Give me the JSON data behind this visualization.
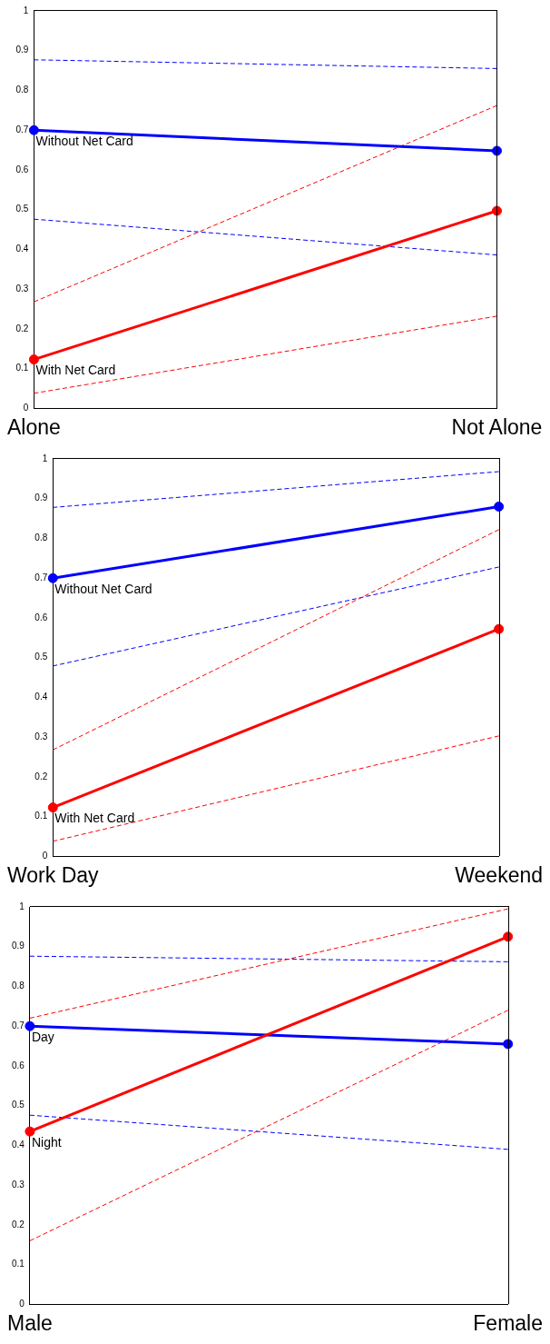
{
  "chart_data": [
    {
      "type": "line",
      "categories": [
        "Alone",
        "Not Alone"
      ],
      "ylim": [
        0,
        1
      ],
      "yticks": [
        0,
        0.1,
        0.2,
        0.3,
        0.4,
        0.5,
        0.6,
        0.7,
        0.8,
        0.9,
        1
      ],
      "marker": "circle",
      "legend": false,
      "series": [
        {
          "color": "#0000ff",
          "values": [
            0.877,
            0.855
          ],
          "line_style": "dashed",
          "marker": "none"
        },
        {
          "color": "#0000ff",
          "values": [
            0.476,
            0.386
          ],
          "line_style": "dashed",
          "marker": "none"
        },
        {
          "color": "#ff0000",
          "values": [
            0.268,
            0.762
          ],
          "line_style": "dashed",
          "marker": "none"
        },
        {
          "color": "#ff0000",
          "values": [
            0.038,
            0.232
          ],
          "line_style": "dashed",
          "marker": "none"
        },
        {
          "name": "Without Net Card",
          "color": "#0000ff",
          "values": [
            0.7,
            0.648
          ],
          "line_style": "solid"
        },
        {
          "name": "With Net Card",
          "color": "#ff0000",
          "values": [
            0.123,
            0.497
          ],
          "line_style": "solid"
        }
      ]
    },
    {
      "type": "line",
      "categories": [
        "Work Day",
        "Weekend"
      ],
      "ylim": [
        0,
        1
      ],
      "yticks": [
        0,
        0.1,
        0.2,
        0.3,
        0.4,
        0.5,
        0.6,
        0.7,
        0.8,
        0.9,
        1
      ],
      "marker": "circle",
      "legend": false,
      "series": [
        {
          "color": "#0000ff",
          "values": [
            0.878,
            0.968
          ],
          "line_style": "dashed",
          "marker": "none"
        },
        {
          "color": "#0000ff",
          "values": [
            0.479,
            0.728
          ],
          "line_style": "dashed",
          "marker": "none"
        },
        {
          "color": "#ff0000",
          "values": [
            0.268,
            0.822
          ],
          "line_style": "dashed",
          "marker": "none"
        },
        {
          "color": "#ff0000",
          "values": [
            0.038,
            0.303
          ],
          "line_style": "dashed",
          "marker": "none"
        },
        {
          "name": "Without Net Card",
          "color": "#0000ff",
          "values": [
            0.7,
            0.88
          ],
          "line_style": "solid"
        },
        {
          "name": "With Net Card",
          "color": "#ff0000",
          "values": [
            0.123,
            0.572
          ],
          "line_style": "solid"
        }
      ]
    },
    {
      "type": "line",
      "categories": [
        "Male",
        "Female"
      ],
      "ylim": [
        0,
        1
      ],
      "yticks": [
        0,
        0.1,
        0.2,
        0.3,
        0.4,
        0.5,
        0.6,
        0.7,
        0.8,
        0.9,
        1
      ],
      "marker": "circle",
      "legend": false,
      "series": [
        {
          "color": "#0000ff",
          "values": [
            0.876,
            0.862
          ],
          "line_style": "dashed",
          "marker": "none"
        },
        {
          "color": "#0000ff",
          "values": [
            0.476,
            0.39
          ],
          "line_style": "dashed",
          "marker": "none"
        },
        {
          "color": "#ff0000",
          "values": [
            0.72,
            0.995
          ],
          "line_style": "dashed",
          "marker": "none"
        },
        {
          "color": "#ff0000",
          "values": [
            0.16,
            0.74
          ],
          "line_style": "dashed",
          "marker": "none"
        },
        {
          "name": "Day",
          "color": "#0000ff",
          "values": [
            0.7,
            0.655
          ],
          "line_style": "solid"
        },
        {
          "name": "Night",
          "color": "#ff0000",
          "values": [
            0.435,
            0.925
          ],
          "line_style": "solid"
        }
      ]
    }
  ]
}
